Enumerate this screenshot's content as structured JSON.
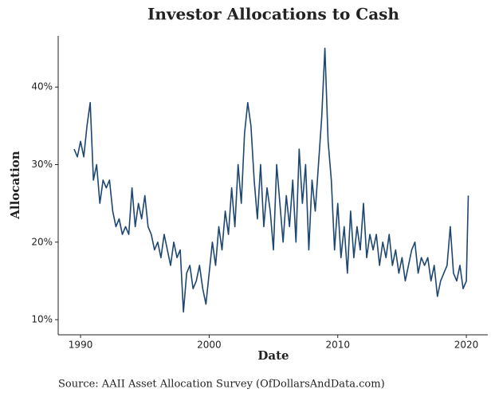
{
  "chart_data": {
    "type": "line",
    "title": "Investor Allocations to Cash",
    "x_label": "Date",
    "y_label": "Allocation",
    "caption": "Source: AAII Asset Allocation Survey (OfDollarsAndData.com)",
    "x": [
      1989.5,
      1989.75,
      1990,
      1990.25,
      1990.5,
      1990.75,
      1991,
      1991.25,
      1991.5,
      1991.75,
      1992,
      1992.25,
      1992.5,
      1992.75,
      1993,
      1993.25,
      1993.5,
      1993.75,
      1994,
      1994.25,
      1994.5,
      1994.75,
      1995,
      1995.25,
      1995.5,
      1995.75,
      1996,
      1996.25,
      1996.5,
      1996.75,
      1997,
      1997.25,
      1997.5,
      1997.75,
      1998,
      1998.25,
      1998.5,
      1998.75,
      1999,
      1999.25,
      1999.5,
      1999.75,
      2000,
      2000.25,
      2000.5,
      2000.75,
      2001,
      2001.25,
      2001.5,
      2001.75,
      2002,
      2002.25,
      2002.5,
      2002.75,
      2003,
      2003.25,
      2003.5,
      2003.75,
      2004,
      2004.25,
      2004.5,
      2004.75,
      2005,
      2005.25,
      2005.5,
      2005.75,
      2006,
      2006.25,
      2006.5,
      2006.75,
      2007,
      2007.25,
      2007.5,
      2007.75,
      2008,
      2008.25,
      2008.5,
      2008.75,
      2009,
      2009.25,
      2009.5,
      2009.75,
      2010,
      2010.25,
      2010.5,
      2010.75,
      2011,
      2011.25,
      2011.5,
      2011.75,
      2012,
      2012.25,
      2012.5,
      2012.75,
      2013,
      2013.25,
      2013.5,
      2013.75,
      2014,
      2014.25,
      2014.5,
      2014.75,
      2015,
      2015.25,
      2015.5,
      2015.75,
      2016,
      2016.25,
      2016.5,
      2016.75,
      2017,
      2017.25,
      2017.5,
      2017.75,
      2018,
      2018.25,
      2018.5,
      2018.75,
      2019,
      2019.25,
      2019.5,
      2019.75,
      2020,
      2020.15
    ],
    "series": [
      {
        "name": "Cash allocation",
        "color": "#1d4670",
        "values": [
          32,
          31,
          33,
          31,
          35,
          38,
          28,
          30,
          25,
          28,
          27,
          28,
          24,
          22,
          23,
          21,
          22,
          21,
          27,
          22,
          25,
          23,
          26,
          22,
          21,
          19,
          20,
          18,
          21,
          19,
          17,
          20,
          18,
          19,
          11,
          16,
          17,
          14,
          15,
          17,
          14,
          12,
          16,
          20,
          17,
          22,
          19,
          24,
          21,
          27,
          22,
          30,
          25,
          34,
          38,
          35,
          28,
          23,
          30,
          22,
          27,
          24,
          19,
          30,
          25,
          20,
          26,
          22,
          28,
          20,
          32,
          25,
          30,
          19,
          28,
          24,
          30,
          36,
          45,
          33,
          28,
          19,
          25,
          18,
          22,
          16,
          24,
          18,
          22,
          19,
          25,
          18,
          21,
          19,
          21,
          17,
          20,
          18,
          21,
          17,
          19,
          16,
          18,
          15,
          17,
          19,
          20,
          16,
          18,
          17,
          18,
          15,
          17,
          13,
          15,
          16,
          17,
          22,
          16,
          15,
          17,
          14,
          15,
          26
        ]
      }
    ],
    "xlim": [
      1988.26,
      2021.67
    ],
    "ylim": [
      8.05,
      46.6
    ],
    "xticks": [
      1990,
      2000,
      2010,
      2020
    ],
    "yticks": [
      {
        "value": 10,
        "label": "10%"
      },
      {
        "value": 20,
        "label": "20%"
      },
      {
        "value": 30,
        "label": "30%"
      },
      {
        "value": 40,
        "label": "40%"
      }
    ]
  }
}
